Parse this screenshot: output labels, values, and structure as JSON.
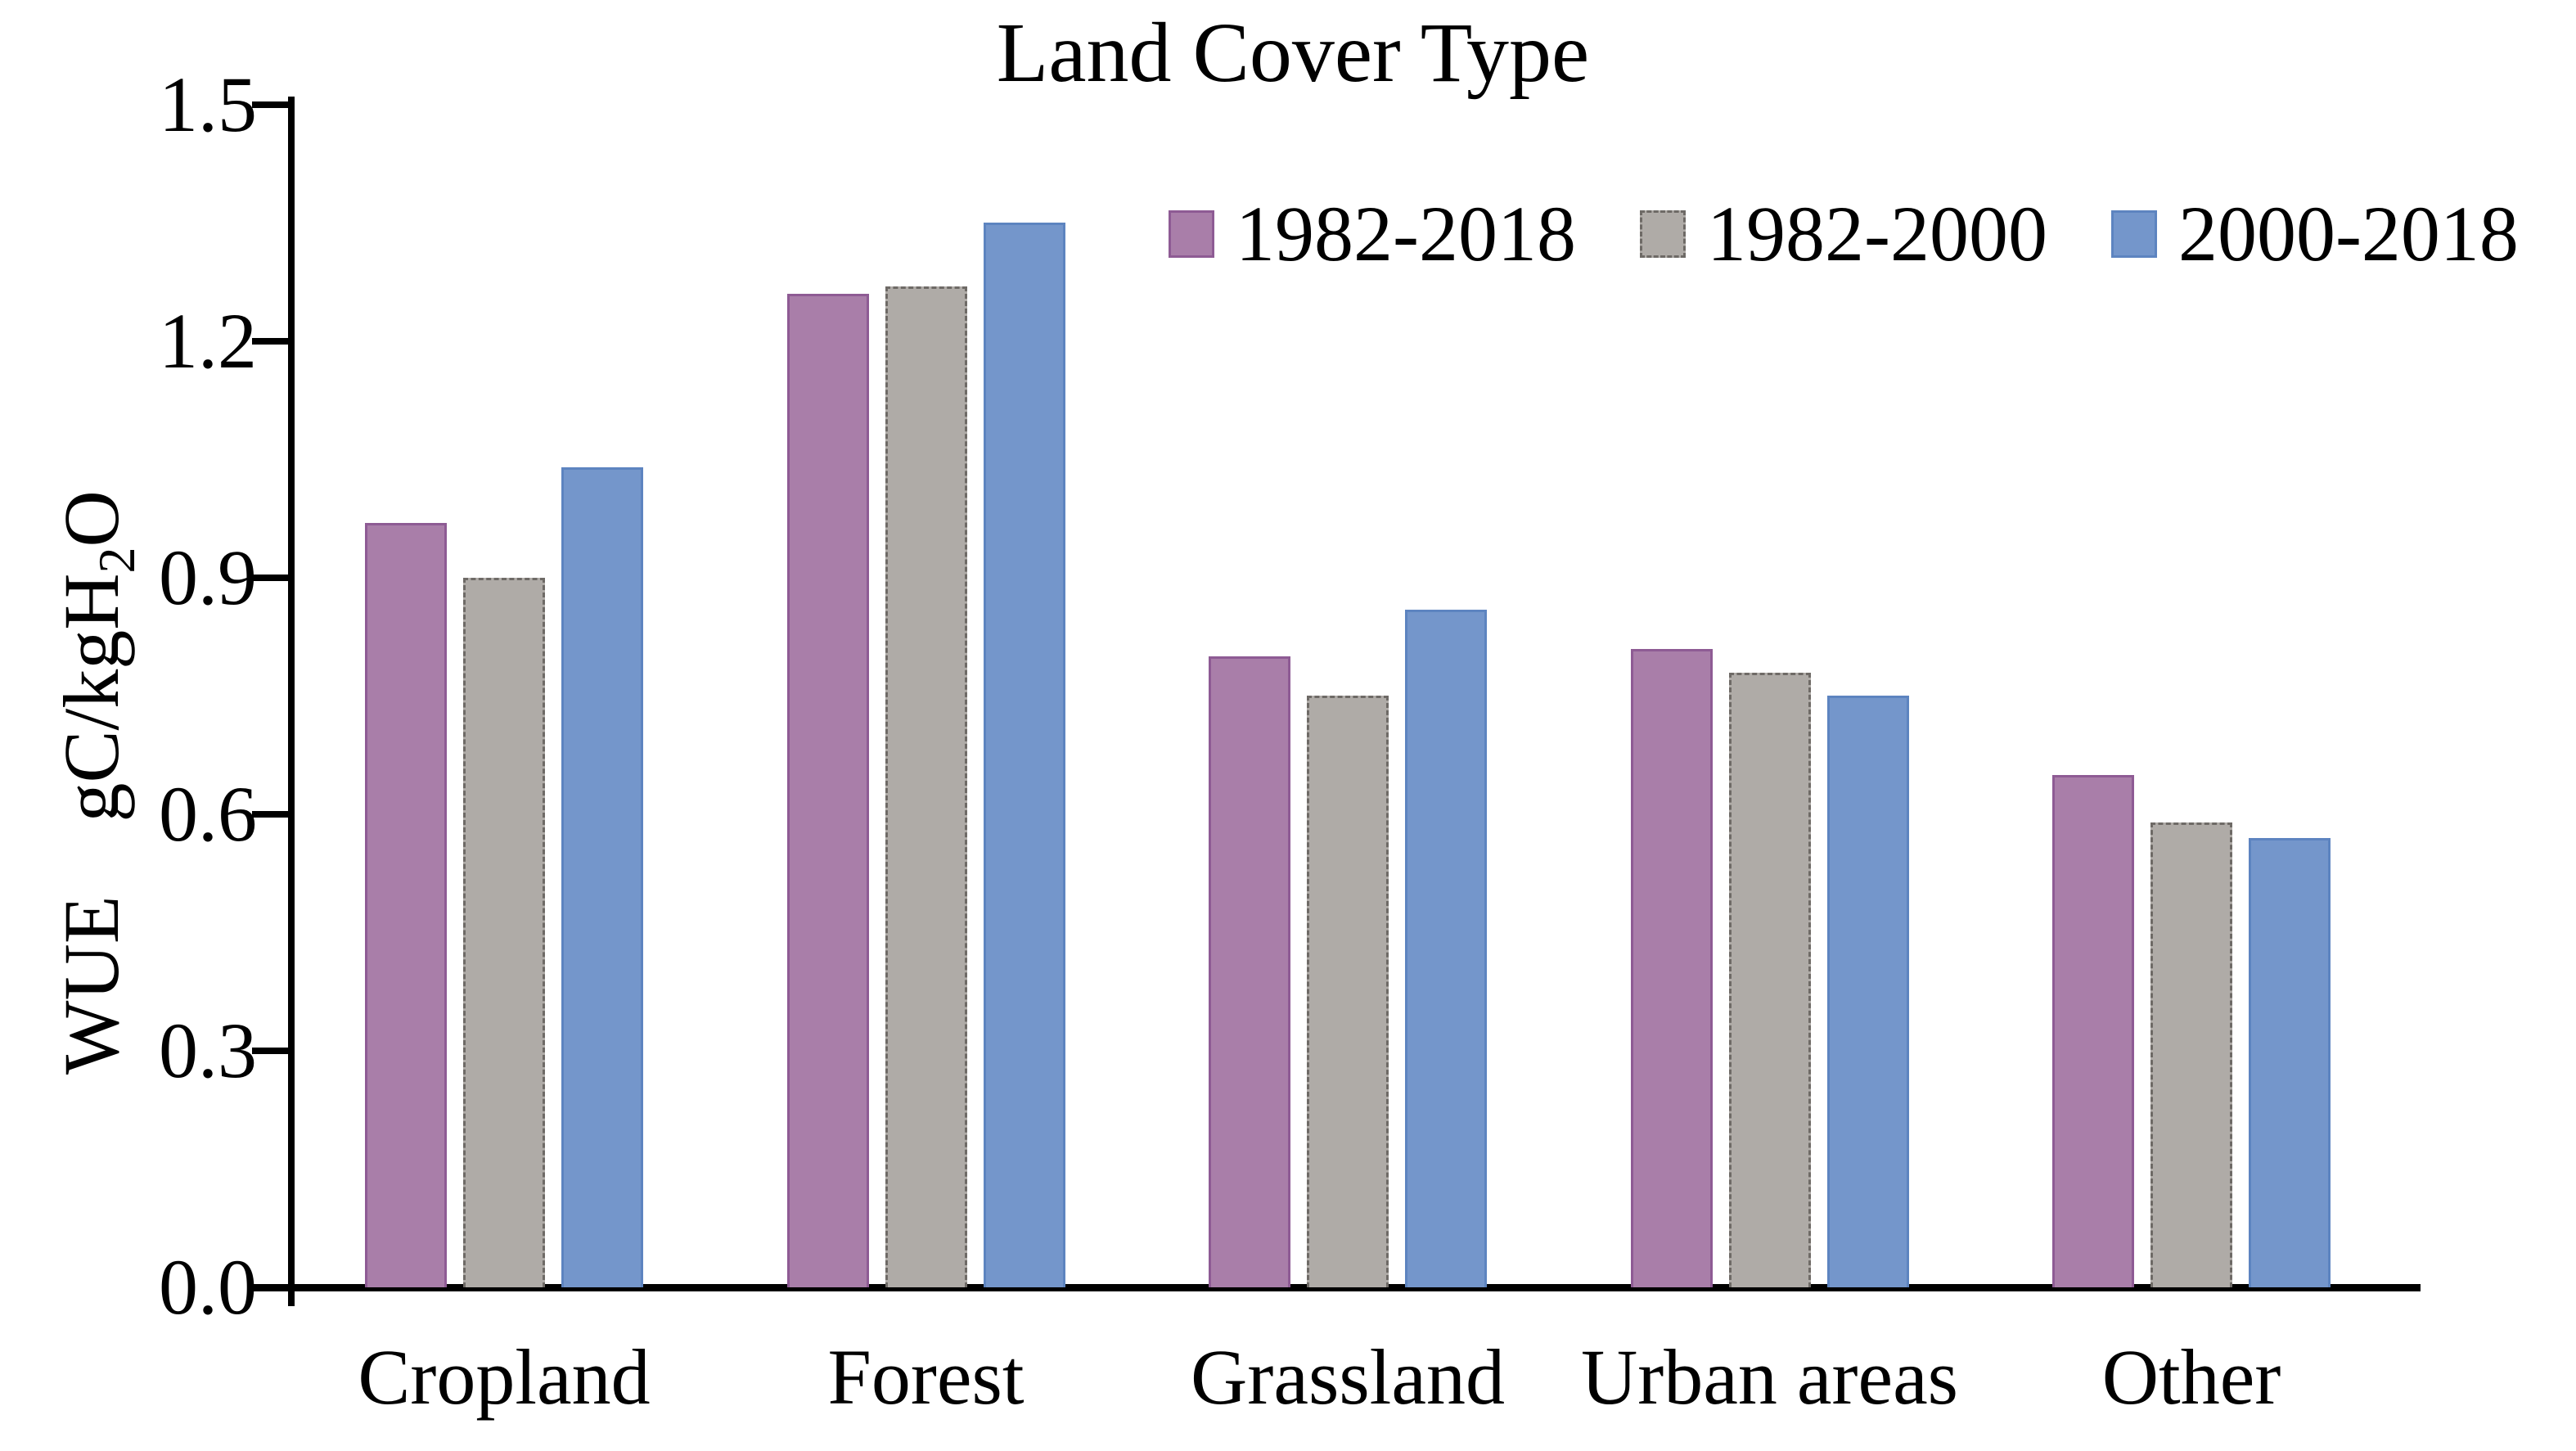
{
  "chart_data": {
    "type": "bar",
    "title": "Land Cover Type",
    "categories": [
      "Cropland",
      "Forest",
      "Grassland",
      "Urban areas",
      "Other"
    ],
    "series": [
      {
        "name": "1982-2018",
        "color": "#A97EA9",
        "border_color": "#8E5B94",
        "border_style": "solid",
        "values": [
          0.97,
          1.26,
          0.8,
          0.81,
          0.65
        ]
      },
      {
        "name": "1982-2000",
        "color": "#AFABA7",
        "border_color": "#6E6A66",
        "border_style": "dashed",
        "values": [
          0.9,
          1.27,
          0.75,
          0.78,
          0.59
        ]
      },
      {
        "name": "2000-2018",
        "color": "#7496CB",
        "border_color": "#5D84C0",
        "border_style": "solid",
        "values": [
          1.04,
          1.35,
          0.86,
          0.75,
          0.57
        ]
      }
    ],
    "ylabel": {
      "name": "WUE",
      "unit_main": "gC/kgH",
      "unit_sub": "2",
      "unit_end": "O"
    },
    "yticks": [
      "1.5",
      "1.2",
      "0.9",
      "0.6",
      "0.3",
      "0.0"
    ],
    "ylim": [
      0.0,
      1.5
    ],
    "legend_position": "top-right-inside",
    "grid": false,
    "axis_color": "#000000",
    "background_color": "#FFFFFF"
  }
}
